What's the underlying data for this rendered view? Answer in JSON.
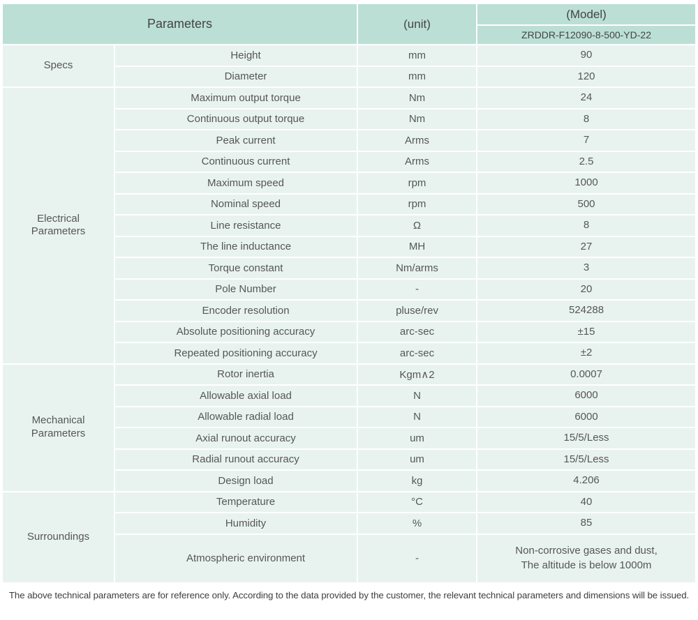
{
  "table": {
    "header": {
      "parameters_label": "Parameters",
      "unit_label": "(unit)",
      "model_label": "(Model)",
      "model_value": "ZRDDR-F12090-8-500-YD-22"
    },
    "sections": [
      {
        "label": "Specs",
        "rows": [
          {
            "name": "Height",
            "unit": "mm",
            "value": "90"
          },
          {
            "name": "Diameter",
            "unit": "mm",
            "value": "120"
          }
        ]
      },
      {
        "label": "Electrical Parameters",
        "rows": [
          {
            "name": "Maximum output torque",
            "unit": "Nm",
            "value": "24"
          },
          {
            "name": "Continuous output torque",
            "unit": "Nm",
            "value": "8"
          },
          {
            "name": "Peak current",
            "unit": "Arms",
            "value": "7"
          },
          {
            "name": "Continuous current",
            "unit": "Arms",
            "value": "2.5"
          },
          {
            "name": "Maximum speed",
            "unit": "rpm",
            "value": "1000"
          },
          {
            "name": "Nominal speed",
            "unit": "rpm",
            "value": "500"
          },
          {
            "name": "Line resistance",
            "unit": "Ω",
            "value": "8"
          },
          {
            "name": "The line inductance",
            "unit": "MH",
            "value": "27"
          },
          {
            "name": "Torque constant",
            "unit": "Nm/arms",
            "value": "3"
          },
          {
            "name": "Pole Number",
            "unit": "-",
            "value": "20"
          },
          {
            "name": "Encoder resolution",
            "unit": "pluse/rev",
            "value": "524288"
          },
          {
            "name": "Absolute positioning accuracy",
            "unit": "arc-sec",
            "value": "±15"
          },
          {
            "name": "Repeated positioning accuracy",
            "unit": "arc-sec",
            "value": "±2"
          }
        ]
      },
      {
        "label": "Mechanical Parameters",
        "rows": [
          {
            "name": "Rotor inertia",
            "unit": "Kgm∧2",
            "value": "0.0007"
          },
          {
            "name": "Allowable axial load",
            "unit": "N",
            "value": "6000"
          },
          {
            "name": "Allowable radial load",
            "unit": "N",
            "value": "6000"
          },
          {
            "name": "Axial runout accuracy",
            "unit": "um",
            "value": "15/5/Less"
          },
          {
            "name": "Radial runout accuracy",
            "unit": "um",
            "value": "15/5/Less"
          },
          {
            "name": "Design load",
            "unit": "kg",
            "value": "4.206"
          }
        ]
      },
      {
        "label": "Surroundings",
        "rows": [
          {
            "name": "Temperature",
            "unit": "°C",
            "value": "40"
          },
          {
            "name": "Humidity",
            "unit": "%",
            "value": "85"
          },
          {
            "name": "Atmospheric environment",
            "unit": "-",
            "value": "Non-corrosive gases and dust,\nThe altitude is below 1000m",
            "tall": true
          }
        ]
      }
    ]
  },
  "footer": {
    "note": "The above technical parameters are for reference only. According to the data provided by the customer, the relevant technical parameters and dimensions will be issued."
  },
  "colors": {
    "header_bg": "#bbdfd4",
    "cell_bg": "#e8f3f0",
    "header_text": "#444444",
    "cell_text": "#565656",
    "note_text": "#3d3d3d",
    "page_bg": "#ffffff"
  }
}
